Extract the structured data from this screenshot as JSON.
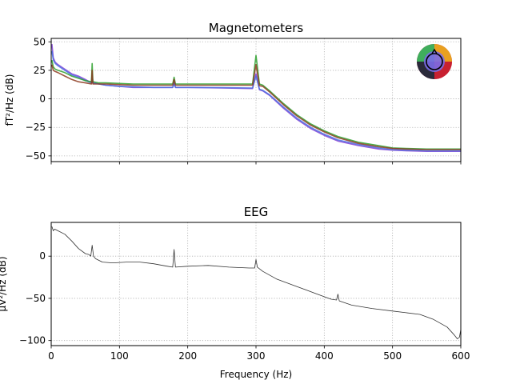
{
  "chart_data": [
    {
      "type": "line",
      "title": "Magnetometers",
      "xlabel": "",
      "ylabel": "fT²/Hz (dB)",
      "xlim": [
        0,
        600
      ],
      "ylim": [
        -55,
        53
      ],
      "xticks": [
        0,
        100,
        200,
        300,
        400,
        500,
        600
      ],
      "xtick_labels_visible": false,
      "yticks": [
        50,
        25,
        0,
        -25,
        -50
      ],
      "ytick_labels": [
        "50",
        "25",
        "0",
        "−25",
        "−50"
      ],
      "grid": true,
      "series": [
        {
          "color": "#7f3fd6",
          "x": [
            1,
            3,
            6,
            10,
            20,
            30,
            40,
            50,
            59,
            60,
            61,
            70,
            80,
            100,
            120,
            150,
            178,
            180,
            182,
            200,
            250,
            295,
            300,
            305,
            310,
            320,
            340,
            360,
            380,
            400,
            420,
            450,
            480,
            500,
            520,
            550,
            580,
            600
          ],
          "y": [
            48,
            36,
            32,
            30,
            26,
            22,
            20,
            17,
            14,
            22,
            14,
            13,
            12,
            11,
            10,
            10,
            10,
            14,
            10,
            10,
            9.5,
            9,
            22,
            8,
            7,
            3,
            -8,
            -18,
            -26,
            -32,
            -37,
            -41,
            -44,
            -45,
            -45.5,
            -46,
            -46,
            -46
          ]
        },
        {
          "color": "#4a6fe0",
          "x": [
            1,
            3,
            6,
            10,
            20,
            30,
            40,
            50,
            59,
            60,
            61,
            70,
            80,
            100,
            120,
            150,
            178,
            180,
            182,
            200,
            250,
            295,
            300,
            305,
            310,
            320,
            340,
            360,
            380,
            400,
            420,
            450,
            480,
            500,
            520,
            550,
            580,
            600
          ],
          "y": [
            42,
            34,
            31,
            29,
            25,
            21,
            19,
            16,
            14,
            20,
            14,
            13,
            12,
            11,
            10.5,
            10,
            10,
            14,
            10,
            10,
            9.8,
            9.5,
            20,
            8.5,
            7.5,
            3.5,
            -7,
            -17,
            -25,
            -31,
            -36,
            -40,
            -43,
            -44.5,
            -45,
            -45.5,
            -45.5,
            -45.5
          ]
        },
        {
          "color": "#2ca02c",
          "x": [
            1,
            3,
            6,
            10,
            20,
            30,
            40,
            50,
            59,
            60,
            61,
            70,
            80,
            100,
            120,
            150,
            178,
            180,
            182,
            200,
            250,
            295,
            300,
            305,
            310,
            320,
            340,
            360,
            380,
            400,
            420,
            450,
            480,
            500,
            520,
            550,
            580,
            600
          ],
          "y": [
            34,
            28,
            26,
            25,
            23,
            20,
            18,
            16,
            15,
            31,
            15,
            14,
            14,
            13.5,
            13,
            13,
            13,
            19,
            13,
            13,
            13,
            13,
            38,
            13,
            12,
            7,
            -4,
            -14,
            -22,
            -28,
            -33,
            -38,
            -41,
            -43,
            -43.5,
            -44,
            -44,
            -44
          ]
        },
        {
          "color": "#8c3a1e",
          "x": [
            1,
            3,
            6,
            10,
            20,
            30,
            40,
            50,
            59,
            60,
            61,
            70,
            80,
            100,
            120,
            150,
            178,
            180,
            182,
            200,
            250,
            295,
            300,
            305,
            310,
            320,
            340,
            360,
            380,
            400,
            420,
            450,
            480,
            500,
            520,
            550,
            580,
            600
          ],
          "y": [
            30,
            25,
            24,
            23,
            20,
            17,
            15,
            14,
            13,
            25,
            13,
            13,
            13,
            12.5,
            12,
            12,
            12,
            17,
            12,
            12,
            12,
            12,
            30,
            11.5,
            11,
            6,
            -5,
            -15,
            -23,
            -29,
            -34,
            -39,
            -42,
            -43.5,
            -44,
            -44.5,
            -44.5,
            -44.5
          ]
        }
      ]
    },
    {
      "type": "line",
      "title": "EEG",
      "xlabel": "Frequency (Hz)",
      "ylabel": "µV²/Hz (dB)",
      "xlim": [
        0,
        600
      ],
      "ylim": [
        -106,
        40
      ],
      "xticks": [
        0,
        100,
        200,
        300,
        400,
        500,
        600
      ],
      "xtick_labels": [
        "0",
        "100",
        "200",
        "300",
        "400",
        "500",
        "600"
      ],
      "yticks": [
        0,
        -50,
        -100
      ],
      "ytick_labels": [
        "0",
        "−50",
        "−100"
      ],
      "grid": true,
      "series": [
        {
          "color": "#333333",
          "x": [
            1,
            3,
            5,
            10,
            20,
            30,
            40,
            50,
            55,
            58,
            60,
            62,
            65,
            75,
            90,
            110,
            130,
            150,
            170,
            178,
            180,
            182,
            200,
            230,
            260,
            290,
            298,
            300,
            302,
            310,
            330,
            360,
            390,
            410,
            418,
            420,
            422,
            440,
            470,
            500,
            520,
            540,
            560,
            580,
            590,
            595,
            598,
            600
          ],
          "y": [
            35,
            30,
            32,
            30,
            26,
            18,
            9,
            3,
            2,
            0,
            13,
            0,
            -3,
            -7,
            -8,
            -7,
            -7,
            -9,
            -12,
            -13,
            8,
            -13,
            -12,
            -11,
            -13,
            -14,
            -14,
            -4,
            -13,
            -18,
            -27,
            -36,
            -45,
            -51,
            -52,
            -45,
            -53,
            -58,
            -62,
            -65,
            -67,
            -69,
            -75,
            -84,
            -93,
            -98,
            -96,
            -87
          ]
        }
      ]
    }
  ],
  "colors": {
    "axes": "#000000",
    "grid": "#b0b0b0"
  },
  "icons": {
    "sensor_layout": "sensor-layout-color-disc-icon"
  }
}
